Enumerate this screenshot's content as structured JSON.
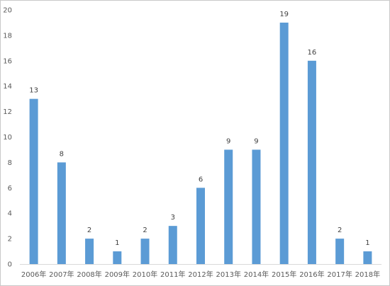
{
  "chart_data": {
    "type": "bar",
    "categories": [
      "2006年",
      "2007年",
      "2008年",
      "2009年",
      "2010年",
      "2011年",
      "2012年",
      "2013年",
      "2014年",
      "2015年",
      "2016年",
      "2017年",
      "2018年"
    ],
    "values": [
      13,
      8,
      2,
      1,
      2,
      3,
      6,
      9,
      9,
      19,
      16,
      2,
      1
    ],
    "data_labels": [
      "13",
      "8",
      "2",
      "1",
      "2",
      "3",
      "6",
      "9",
      "9",
      "19",
      "16",
      "2",
      "1"
    ],
    "y_ticks": [
      0,
      2,
      4,
      6,
      8,
      10,
      12,
      14,
      16,
      18,
      20
    ],
    "ylim": [
      0,
      20
    ],
    "grid": false,
    "legend": "none",
    "title": "",
    "xlabel": "",
    "ylabel": "",
    "bar_color": "#5b9bd5",
    "axis_color": "#d9d9d9"
  }
}
